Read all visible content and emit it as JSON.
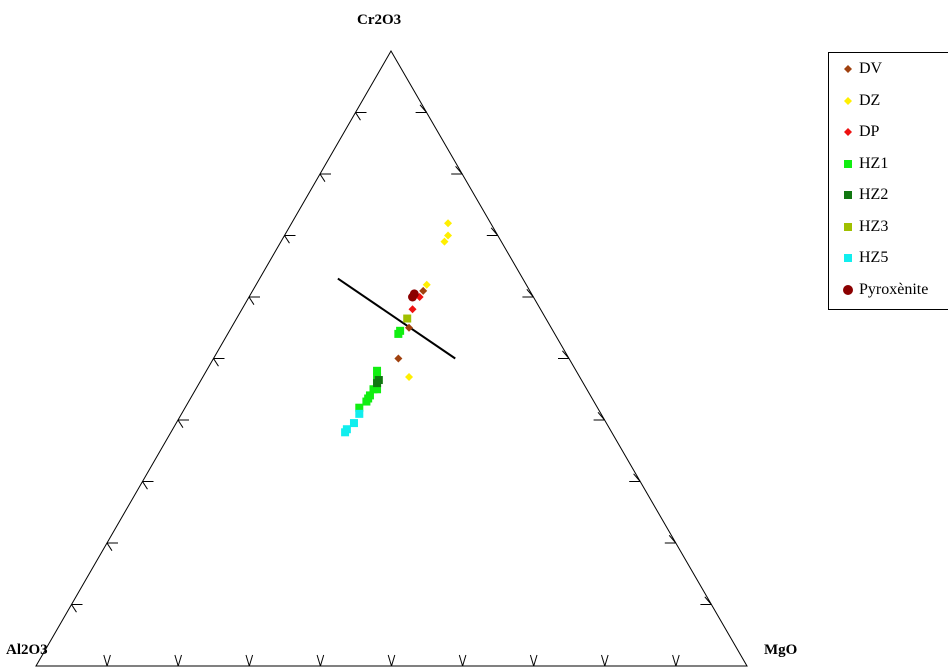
{
  "chart_data": {
    "type": "scatter",
    "subtype": "ternary",
    "vertices": {
      "top": "Cr2O3",
      "left": "Al2O3",
      "right": "MgO"
    },
    "tick_step": 0.1,
    "series": [
      {
        "name": "DV",
        "marker": "diamond",
        "color": "#a0410f",
        "points": [
          [
            0.5,
            0.24,
            0.26
          ],
          [
            0.61,
            0.15,
            0.24
          ],
          [
            0.55,
            0.2,
            0.25
          ]
        ]
      },
      {
        "name": "DZ",
        "marker": "diamond",
        "color": "#ffef00",
        "points": [
          [
            0.7,
            0.07,
            0.23
          ],
          [
            0.69,
            0.08,
            0.23
          ],
          [
            0.72,
            0.06,
            0.22
          ],
          [
            0.62,
            0.14,
            0.24
          ],
          [
            0.47,
            0.24,
            0.29
          ]
        ]
      },
      {
        "name": "DP",
        "marker": "diamond",
        "color": "#ee1111",
        "points": [
          [
            0.6,
            0.16,
            0.24
          ],
          [
            0.58,
            0.18,
            0.24
          ]
        ]
      },
      {
        "name": "HZ1",
        "marker": "square",
        "color": "#11ee11",
        "points": [
          [
            0.54,
            0.22,
            0.24
          ],
          [
            0.545,
            0.215,
            0.24
          ],
          [
            0.48,
            0.28,
            0.24
          ],
          [
            0.47,
            0.285,
            0.245
          ],
          [
            0.45,
            0.3,
            0.25
          ],
          [
            0.45,
            0.295,
            0.255
          ],
          [
            0.44,
            0.31,
            0.25
          ],
          [
            0.435,
            0.315,
            0.25
          ],
          [
            0.43,
            0.32,
            0.25
          ],
          [
            0.42,
            0.335,
            0.245
          ],
          [
            0.46,
            0.29,
            0.25
          ]
        ]
      },
      {
        "name": "HZ2",
        "marker": "square",
        "color": "#117711",
        "points": [
          [
            0.465,
            0.285,
            0.25
          ],
          [
            0.46,
            0.29,
            0.25
          ]
        ]
      },
      {
        "name": "HZ3",
        "marker": "square",
        "color": "#a0c000",
        "points": [
          [
            0.565,
            0.195,
            0.24
          ]
        ]
      },
      {
        "name": "HZ5",
        "marker": "square",
        "color": "#11eeee",
        "points": [
          [
            0.41,
            0.34,
            0.25
          ],
          [
            0.395,
            0.355,
            0.25
          ],
          [
            0.385,
            0.37,
            0.245
          ],
          [
            0.38,
            0.375,
            0.245
          ]
        ]
      },
      {
        "name": "Pyroxènite",
        "marker": "circle",
        "color": "#8b0000",
        "points": [
          [
            0.6,
            0.17,
            0.23
          ],
          [
            0.605,
            0.165,
            0.23
          ]
        ]
      }
    ],
    "line": [
      [
        0.63,
        0.26,
        0.11
      ],
      [
        0.5,
        0.16,
        0.34
      ]
    ]
  }
}
